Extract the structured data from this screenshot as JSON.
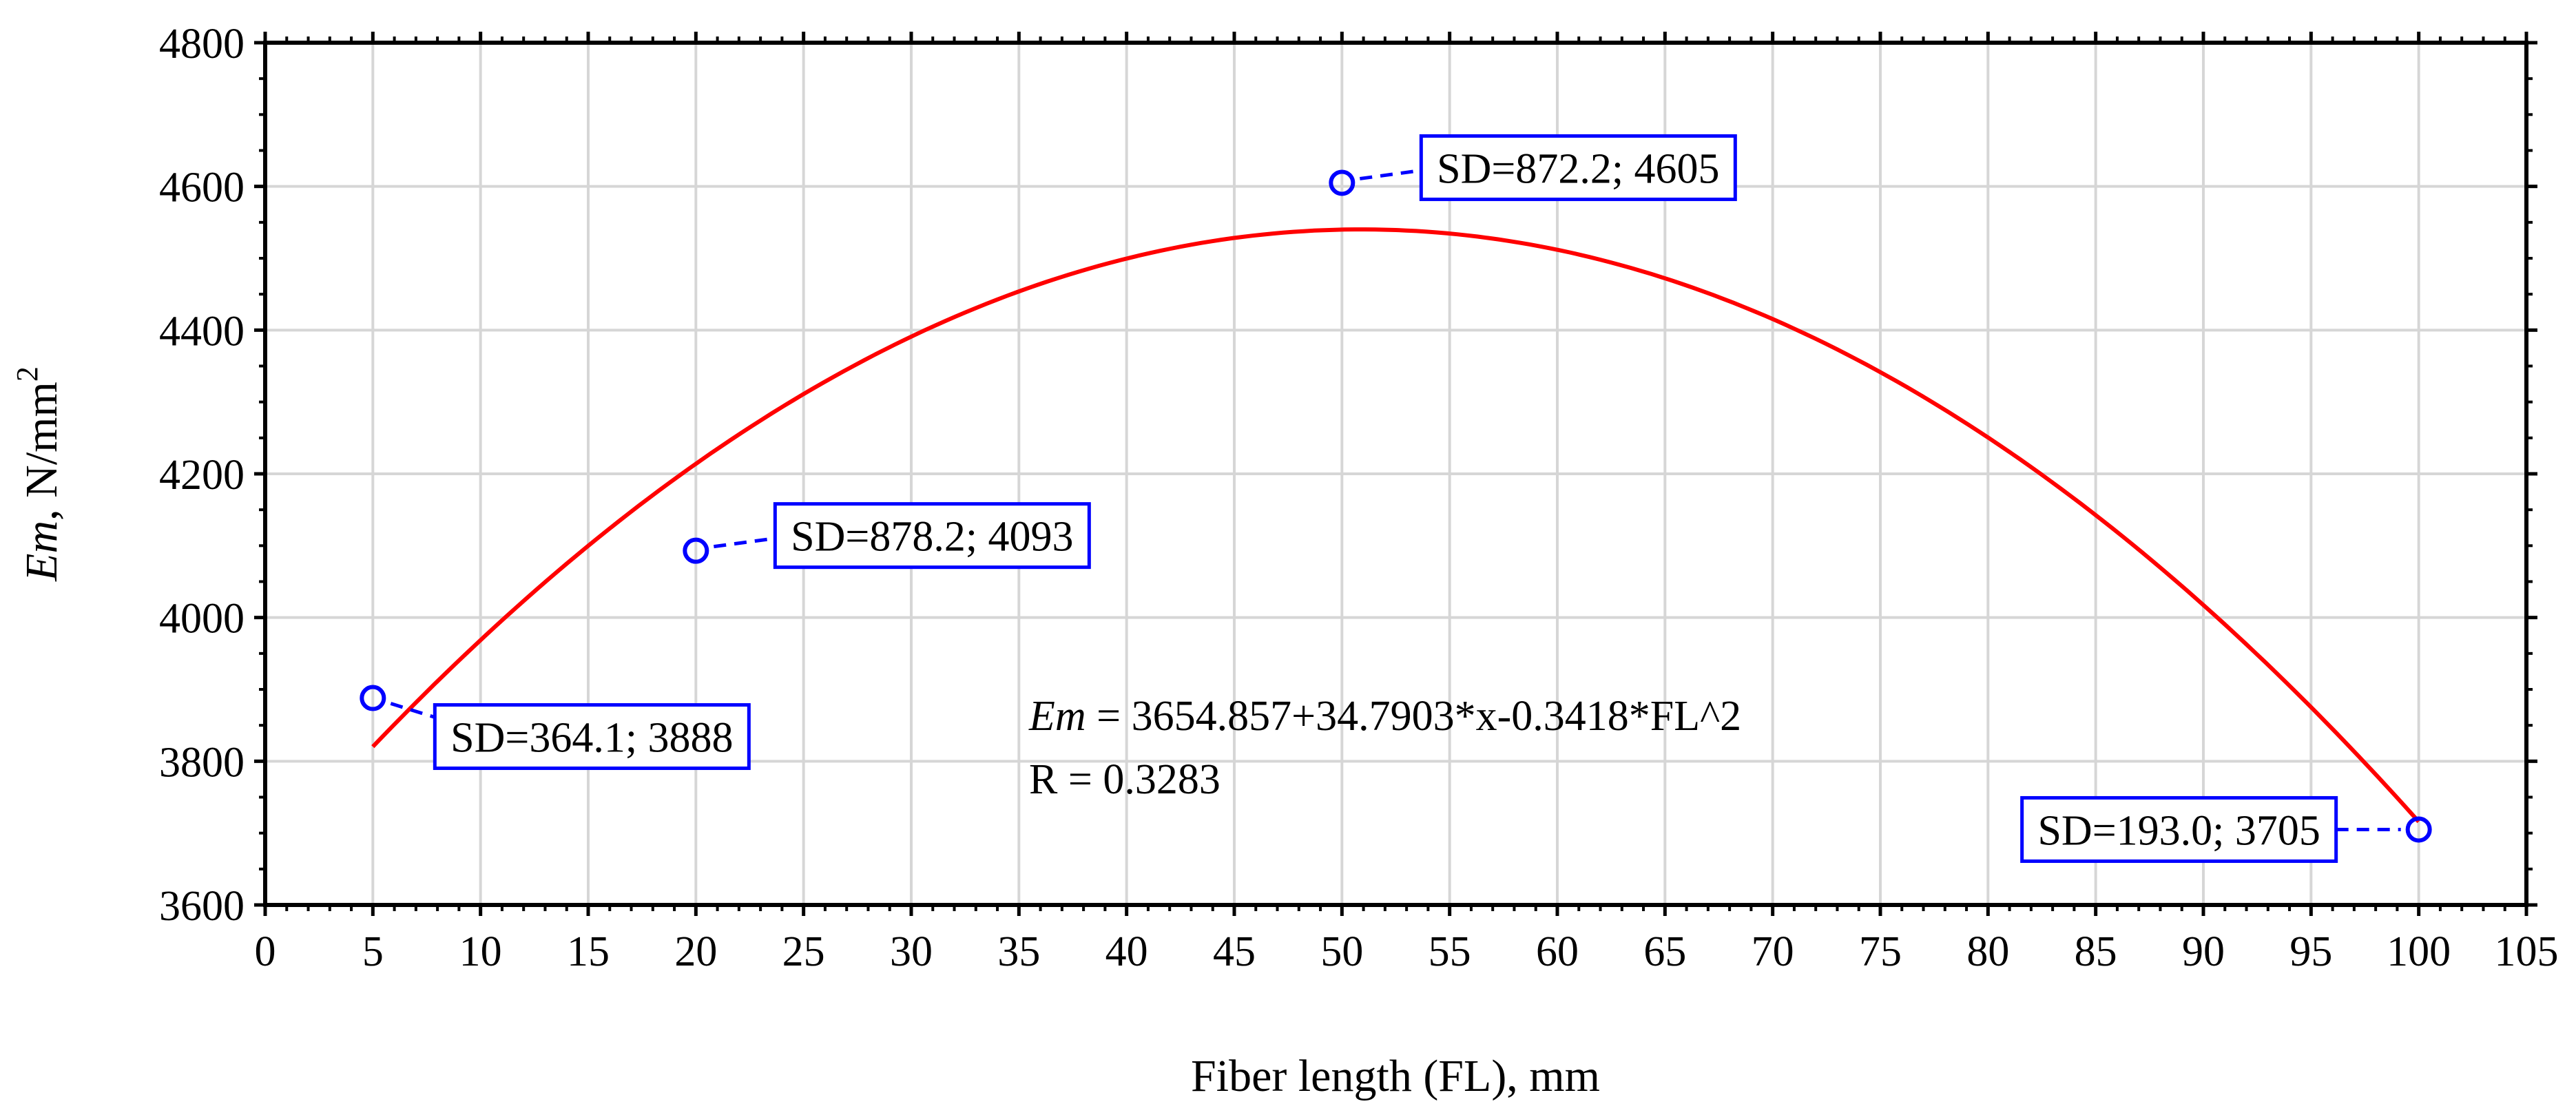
{
  "chart_data": {
    "type": "scatter",
    "xlabel": "Fiber length (FL), mm",
    "ylabel": {
      "var": "Em",
      "rest": ", N/mm",
      "sup": "2"
    },
    "xlim": [
      0,
      105
    ],
    "ylim": [
      3600,
      4800
    ],
    "xticks": [
      0,
      5,
      10,
      15,
      20,
      25,
      30,
      35,
      40,
      45,
      50,
      55,
      60,
      65,
      70,
      75,
      80,
      85,
      90,
      95,
      100,
      105
    ],
    "yticks": [
      3600,
      3800,
      4000,
      4200,
      4400,
      4600,
      4800
    ],
    "grid": true,
    "points": [
      {
        "x": 5,
        "y": 3888,
        "label": "SD=364.1; 3888",
        "label_side": "below-right"
      },
      {
        "x": 20,
        "y": 4093,
        "label": "SD=878.2; 4093",
        "label_side": "right"
      },
      {
        "x": 50,
        "y": 4605,
        "label": "SD=872.2; 4605",
        "label_side": "right"
      },
      {
        "x": 100,
        "y": 3705,
        "label": "SD=193.0; 3705",
        "label_side": "left"
      }
    ],
    "fit": {
      "type": "quadratic",
      "coefficients": {
        "c0": 3654.857,
        "c1": 34.7903,
        "c2": -0.3418
      },
      "x_range": [
        5,
        100
      ],
      "color": "#ff0000"
    },
    "equation": {
      "var": "Em",
      "text": " = 3654.857+34.7903*x-0.3418*FL^2"
    },
    "r_text": "R = 0.3283",
    "point_color": "#0000ff"
  }
}
